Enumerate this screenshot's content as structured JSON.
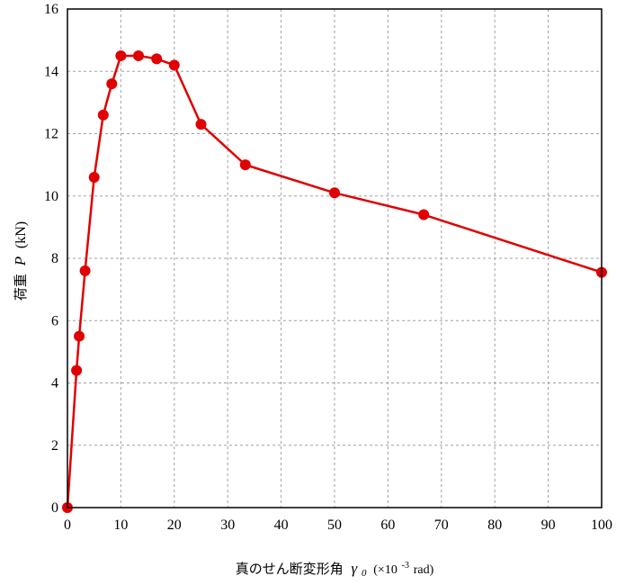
{
  "chart_data": {
    "type": "line",
    "xlabel": {
      "prefix": "真のせん断変形角",
      "symbol": "γ",
      "symbol_sub": "0",
      "unit_prefix": "(×10",
      "unit_exp": "-3",
      "unit_suffix": " rad)"
    },
    "ylabel": {
      "prefix": "荷重",
      "symbol": "P",
      "unit": "(kN)"
    },
    "xlim": [
      0,
      100
    ],
    "ylim": [
      0,
      16
    ],
    "xticks": [
      "0",
      "10",
      "20",
      "30",
      "40",
      "50",
      "60",
      "70",
      "80",
      "90",
      "100"
    ],
    "yticks": [
      "0",
      "2",
      "4",
      "6",
      "8",
      "10",
      "12",
      "14",
      "16"
    ],
    "grid": true,
    "series": [
      {
        "color": "#e00000",
        "x": [
          0,
          1.7,
          2.2,
          3.3,
          5.0,
          6.7,
          8.3,
          10.0,
          13.3,
          16.7,
          20.0,
          25.0,
          33.3,
          50.0,
          66.7,
          100.0
        ],
        "y": [
          0,
          4.4,
          5.5,
          7.6,
          10.6,
          12.6,
          13.6,
          14.5,
          14.5,
          14.4,
          14.2,
          12.3,
          11.0,
          10.1,
          9.4,
          7.55
        ]
      }
    ]
  }
}
